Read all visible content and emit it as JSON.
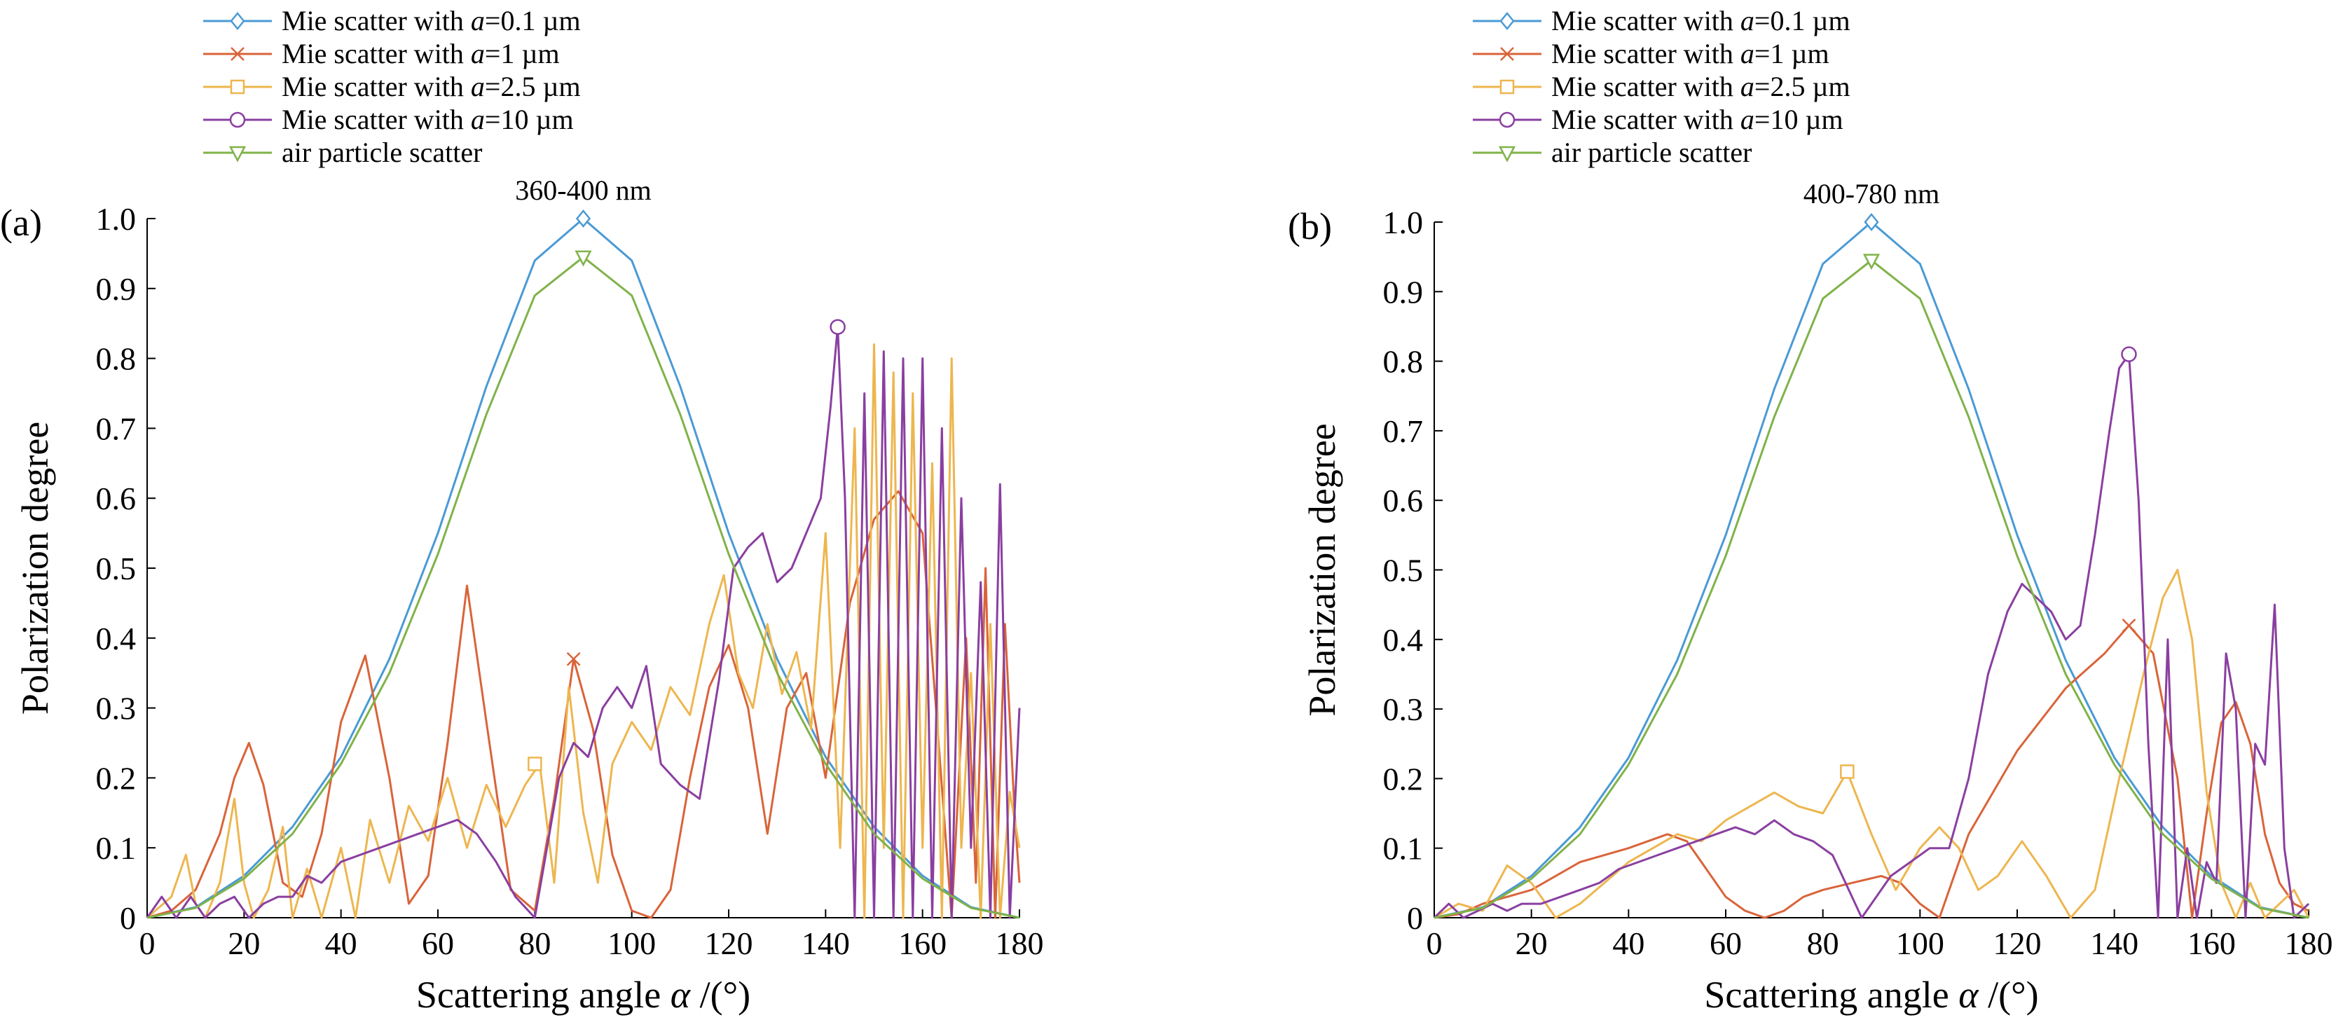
{
  "figure": {
    "name": "polarization degree vs scattering angle"
  },
  "legend_entries": [
    {
      "prefix": "Mie scatter with ",
      "var": "a",
      "rest": "=0.1 µm",
      "color": "#4a9ad5",
      "marker": "diamond"
    },
    {
      "prefix": "Mie scatter with ",
      "var": "a",
      "rest": "=1 µm",
      "color": "#d9643a",
      "marker": "cross"
    },
    {
      "prefix": "Mie scatter with ",
      "var": "a",
      "rest": "=2.5 µm",
      "color": "#edb64f",
      "marker": "square"
    },
    {
      "prefix": "Mie scatter with ",
      "var": "a",
      "rest": "=10 µm",
      "color": "#8a3fa0",
      "marker": "circle"
    },
    {
      "prefix": "air particle scatter",
      "var": "",
      "rest": "",
      "color": "#80b24a",
      "marker": "triangle-down"
    }
  ],
  "chart_data": [
    {
      "type": "line",
      "panel_label": "(a)",
      "title": "360-400 nm",
      "xlabel": "Scattering angle",
      "xlabel_symbol": "α",
      "xlabel_unit": " /(°)",
      "ylabel": "Polarization degree",
      "xlim": [
        0,
        180
      ],
      "ylim": [
        0,
        1.0
      ],
      "xticks": [
        0,
        20,
        40,
        60,
        80,
        100,
        120,
        140,
        160,
        180
      ],
      "yticks": [
        "0",
        "0.1",
        "0.2",
        "0.3",
        "0.4",
        "0.5",
        "0.6",
        "0.7",
        "0.8",
        "0.9",
        "1.0"
      ],
      "series": [
        {
          "name": "Mie scatter with a=0.1 µm",
          "color": "#4a9ad5",
          "marker": "diamond",
          "x": [
            0,
            10,
            20,
            30,
            40,
            50,
            60,
            70,
            80,
            90,
            100,
            110,
            120,
            130,
            140,
            150,
            160,
            170,
            180
          ],
          "y": [
            0,
            0.015,
            0.06,
            0.13,
            0.23,
            0.37,
            0.55,
            0.76,
            0.94,
            1.0,
            0.94,
            0.76,
            0.55,
            0.37,
            0.23,
            0.13,
            0.06,
            0.015,
            0
          ],
          "marker_point": [
            90,
            1.0
          ]
        },
        {
          "name": "Mie scatter with a=1 µm",
          "color": "#d9643a",
          "marker": "cross",
          "x": [
            0,
            5,
            10,
            15,
            18,
            21,
            24,
            28,
            32,
            36,
            40,
            45,
            50,
            54,
            58,
            62,
            66,
            70,
            75,
            80,
            84,
            88,
            92,
            96,
            100,
            104,
            108,
            112,
            116,
            120,
            124,
            128,
            132,
            136,
            140,
            145,
            150,
            155,
            160,
            163,
            166,
            169,
            171,
            173,
            175,
            177,
            179,
            180
          ],
          "y": [
            0,
            0.01,
            0.04,
            0.12,
            0.2,
            0.25,
            0.19,
            0.05,
            0.03,
            0.12,
            0.28,
            0.375,
            0.2,
            0.02,
            0.06,
            0.25,
            0.475,
            0.28,
            0.04,
            0.01,
            0.17,
            0.37,
            0.27,
            0.09,
            0.01,
            0.0,
            0.04,
            0.2,
            0.33,
            0.39,
            0.3,
            0.12,
            0.3,
            0.35,
            0.2,
            0.45,
            0.57,
            0.61,
            0.55,
            0.28,
            0.0,
            0.4,
            0.05,
            0.5,
            0.0,
            0.42,
            0.15,
            0.05
          ],
          "marker_point": [
            88,
            0.37
          ]
        },
        {
          "name": "Mie scatter with a=2.5 µm",
          "color": "#edb64f",
          "marker": "square",
          "x": [
            0,
            5,
            8,
            10,
            12,
            15,
            18,
            20,
            22,
            25,
            28,
            30,
            33,
            36,
            40,
            43,
            46,
            50,
            54,
            58,
            62,
            66,
            70,
            74,
            78,
            81,
            84,
            87,
            90,
            93,
            96,
            100,
            104,
            108,
            112,
            116,
            119,
            122,
            125,
            128,
            131,
            134,
            137,
            140,
            143,
            146,
            148,
            150,
            152,
            154,
            156,
            158,
            160,
            162,
            164,
            166,
            168,
            170,
            172,
            174,
            176,
            178,
            180
          ],
          "y": [
            0,
            0.03,
            0.09,
            0.02,
            0.0,
            0.05,
            0.17,
            0.05,
            0.0,
            0.04,
            0.13,
            0.0,
            0.07,
            0.0,
            0.1,
            0.0,
            0.14,
            0.05,
            0.16,
            0.11,
            0.2,
            0.1,
            0.19,
            0.13,
            0.19,
            0.22,
            0.05,
            0.33,
            0.15,
            0.05,
            0.22,
            0.28,
            0.24,
            0.33,
            0.29,
            0.42,
            0.49,
            0.35,
            0.3,
            0.42,
            0.32,
            0.38,
            0.27,
            0.55,
            0.1,
            0.7,
            0.0,
            0.82,
            0.1,
            0.78,
            0.0,
            0.75,
            0.1,
            0.65,
            0.0,
            0.8,
            0.1,
            0.35,
            0.0,
            0.42,
            0.0,
            0.18,
            0.1
          ],
          "marker_point": [
            80,
            0.22
          ]
        },
        {
          "name": "Mie scatter with a=10 µm",
          "color": "#8a3fa0",
          "marker": "circle",
          "x": [
            0,
            3,
            6,
            9,
            12,
            15,
            18,
            21,
            24,
            27,
            30,
            33,
            36,
            40,
            44,
            48,
            52,
            56,
            60,
            64,
            68,
            72,
            76,
            80,
            82,
            85,
            88,
            91,
            94,
            97,
            100,
            103,
            106,
            110,
            114,
            118,
            121,
            124,
            127,
            130,
            133,
            136,
            139,
            141,
            142.5,
            144,
            146,
            148,
            150,
            152,
            154,
            156,
            158,
            160,
            162,
            164,
            166,
            168,
            170,
            172,
            174,
            176,
            178,
            180
          ],
          "y": [
            0,
            0.03,
            0.0,
            0.03,
            0.0,
            0.02,
            0.03,
            0.0,
            0.02,
            0.03,
            0.03,
            0.06,
            0.05,
            0.08,
            0.09,
            0.1,
            0.11,
            0.12,
            0.13,
            0.14,
            0.12,
            0.08,
            0.03,
            0.0,
            0.08,
            0.2,
            0.25,
            0.23,
            0.3,
            0.33,
            0.3,
            0.36,
            0.22,
            0.19,
            0.17,
            0.34,
            0.5,
            0.53,
            0.55,
            0.48,
            0.5,
            0.55,
            0.6,
            0.73,
            0.845,
            0.6,
            0.0,
            0.75,
            0.0,
            0.81,
            0.0,
            0.8,
            0.0,
            0.8,
            0.0,
            0.7,
            0.0,
            0.6,
            0.1,
            0.48,
            0.0,
            0.62,
            0.0,
            0.3
          ],
          "marker_point": [
            142.5,
            0.845
          ]
        },
        {
          "name": "air particle scatter",
          "color": "#80b24a",
          "marker": "triangle-down",
          "x": [
            0,
            10,
            20,
            30,
            40,
            50,
            60,
            70,
            80,
            90,
            100,
            110,
            120,
            130,
            140,
            150,
            160,
            170,
            180
          ],
          "y": [
            0,
            0.014,
            0.056,
            0.12,
            0.22,
            0.35,
            0.52,
            0.72,
            0.89,
            0.945,
            0.89,
            0.72,
            0.52,
            0.35,
            0.22,
            0.12,
            0.056,
            0.014,
            0
          ],
          "marker_point": [
            90,
            0.945
          ]
        }
      ]
    },
    {
      "type": "line",
      "panel_label": "(b)",
      "title": "400-780 nm",
      "xlabel": "Scattering angle",
      "xlabel_symbol": "α",
      "xlabel_unit": " /(°)",
      "ylabel": "Polarization degree",
      "xlim": [
        0,
        180
      ],
      "ylim": [
        0,
        1.0
      ],
      "xticks": [
        0,
        20,
        40,
        60,
        80,
        100,
        120,
        140,
        160,
        180
      ],
      "yticks": [
        "0",
        "0.1",
        "0.2",
        "0.3",
        "0.4",
        "0.5",
        "0.6",
        "0.7",
        "0.8",
        "0.9",
        "1.0"
      ],
      "series": [
        {
          "name": "Mie scatter with a=0.1 µm",
          "color": "#4a9ad5",
          "marker": "diamond",
          "x": [
            0,
            10,
            20,
            30,
            40,
            50,
            60,
            70,
            80,
            90,
            100,
            110,
            120,
            130,
            140,
            150,
            160,
            170,
            180
          ],
          "y": [
            0,
            0.015,
            0.06,
            0.13,
            0.23,
            0.37,
            0.55,
            0.76,
            0.94,
            1.0,
            0.94,
            0.76,
            0.55,
            0.37,
            0.23,
            0.13,
            0.06,
            0.015,
            0
          ],
          "marker_point": [
            90,
            1.0
          ]
        },
        {
          "name": "Mie scatter with a=1 µm",
          "color": "#d9643a",
          "marker": "cross",
          "x": [
            0,
            5,
            10,
            15,
            20,
            30,
            40,
            48,
            52,
            56,
            60,
            64,
            68,
            72,
            76,
            80,
            86,
            92,
            96,
            100,
            104,
            110,
            120,
            130,
            138,
            143,
            148,
            153,
            156,
            159,
            162,
            165,
            168,
            171,
            174,
            177,
            180
          ],
          "y": [
            0,
            0.005,
            0.02,
            0.03,
            0.04,
            0.08,
            0.1,
            0.12,
            0.11,
            0.07,
            0.03,
            0.01,
            0.0,
            0.01,
            0.03,
            0.04,
            0.05,
            0.06,
            0.05,
            0.02,
            0.0,
            0.12,
            0.24,
            0.33,
            0.38,
            0.42,
            0.38,
            0.2,
            0.0,
            0.15,
            0.28,
            0.31,
            0.25,
            0.12,
            0.05,
            0.02,
            0.01
          ],
          "marker_point": [
            143,
            0.42
          ]
        },
        {
          "name": "Mie scatter with a=2.5 µm",
          "color": "#edb64f",
          "marker": "square",
          "x": [
            0,
            5,
            10,
            15,
            20,
            25,
            30,
            35,
            40,
            45,
            50,
            55,
            60,
            65,
            70,
            75,
            80,
            85,
            90,
            95,
            100,
            104,
            108,
            112,
            116,
            121,
            126,
            131,
            136,
            141,
            146,
            150,
            153,
            156,
            159,
            162,
            165,
            168,
            171,
            174,
            177,
            180
          ],
          "y": [
            0,
            0.02,
            0.01,
            0.075,
            0.05,
            0.0,
            0.02,
            0.05,
            0.08,
            0.1,
            0.12,
            0.11,
            0.14,
            0.16,
            0.18,
            0.16,
            0.15,
            0.21,
            0.12,
            0.04,
            0.1,
            0.13,
            0.1,
            0.04,
            0.06,
            0.11,
            0.06,
            0.0,
            0.04,
            0.2,
            0.35,
            0.46,
            0.5,
            0.4,
            0.18,
            0.05,
            0.0,
            0.05,
            0.0,
            0.02,
            0.04,
            0.0
          ],
          "marker_point": [
            85,
            0.21
          ]
        },
        {
          "name": "Mie scatter with a=10 µm",
          "color": "#8a3fa0",
          "marker": "circle",
          "x": [
            0,
            3,
            6,
            9,
            12,
            15,
            18,
            22,
            26,
            30,
            34,
            38,
            42,
            46,
            50,
            54,
            58,
            62,
            66,
            70,
            74,
            78,
            82,
            86,
            88,
            90,
            94,
            98,
            102,
            106,
            110,
            114,
            118,
            121,
            124,
            127,
            130,
            133,
            136,
            139,
            141,
            143,
            145,
            147,
            149,
            151,
            153,
            155,
            157,
            159,
            161,
            163,
            165,
            167,
            169,
            171,
            173,
            175,
            177,
            180
          ],
          "y": [
            0,
            0.02,
            0.0,
            0.01,
            0.02,
            0.01,
            0.02,
            0.02,
            0.03,
            0.04,
            0.05,
            0.07,
            0.08,
            0.09,
            0.1,
            0.11,
            0.12,
            0.13,
            0.12,
            0.14,
            0.12,
            0.11,
            0.09,
            0.03,
            0.0,
            0.02,
            0.06,
            0.08,
            0.1,
            0.1,
            0.2,
            0.35,
            0.44,
            0.48,
            0.46,
            0.44,
            0.4,
            0.42,
            0.55,
            0.7,
            0.79,
            0.81,
            0.6,
            0.25,
            0.0,
            0.4,
            0.0,
            0.1,
            0.0,
            0.08,
            0.05,
            0.38,
            0.3,
            0.0,
            0.25,
            0.22,
            0.45,
            0.1,
            0.0,
            0.02
          ],
          "marker_point": [
            143,
            0.81
          ]
        },
        {
          "name": "air particle scatter",
          "color": "#80b24a",
          "marker": "triangle-down",
          "x": [
            0,
            10,
            20,
            30,
            40,
            50,
            60,
            70,
            80,
            90,
            100,
            110,
            120,
            130,
            140,
            150,
            160,
            170,
            180
          ],
          "y": [
            0,
            0.014,
            0.056,
            0.12,
            0.22,
            0.35,
            0.52,
            0.72,
            0.89,
            0.945,
            0.89,
            0.72,
            0.52,
            0.35,
            0.22,
            0.12,
            0.056,
            0.014,
            0
          ],
          "marker_point": [
            90,
            0.945
          ]
        }
      ]
    }
  ]
}
